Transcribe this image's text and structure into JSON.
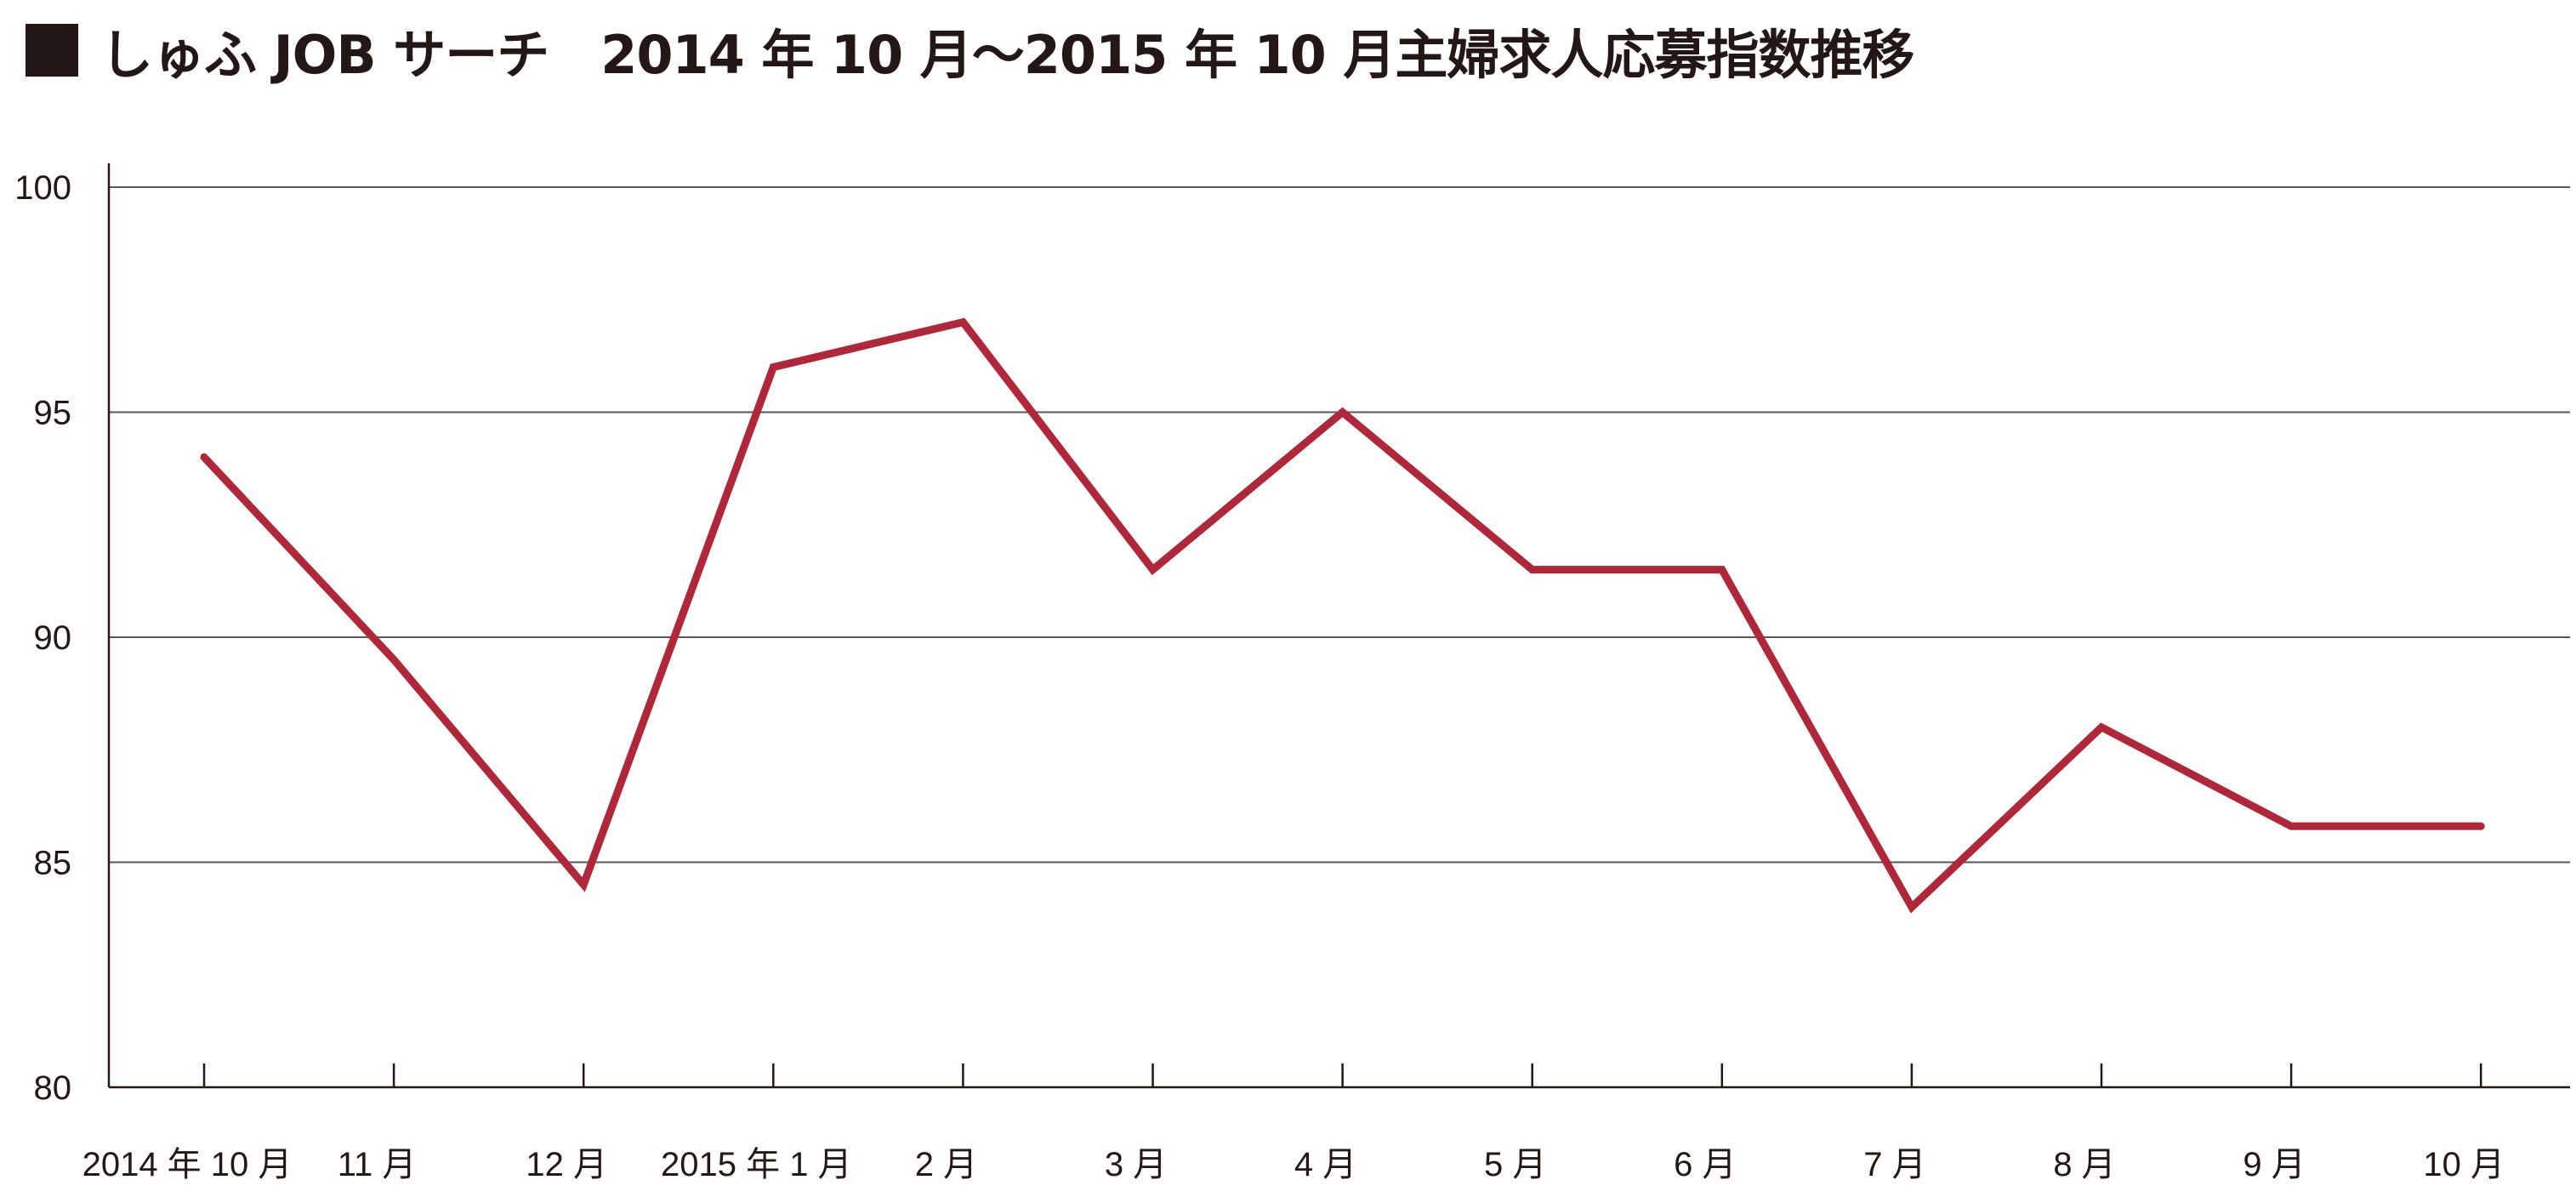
{
  "chart_data": {
    "type": "line",
    "title": "■ しゅふ JOB サーチ　2014 年 10 月〜2015 年 10 月主婦求人応募指数推移",
    "title_text": "しゅふ JOB サーチ　2014 年 10 月〜2015 年 10 月主婦求人応募指数推移",
    "categories": [
      "2014 年 10 月",
      "11 月",
      "12 月",
      "2015 年 1 月",
      "2 月",
      "3 月",
      "4 月",
      "5 月",
      "6 月",
      "7 月",
      "8 月",
      "9 月",
      "10 月"
    ],
    "series": [
      {
        "values": [
          94,
          89.5,
          84.5,
          96,
          97,
          91.5,
          95,
          91.5,
          91.5,
          84,
          88,
          85.8,
          85.8
        ],
        "color": "#b0273a"
      }
    ],
    "ylim": [
      80,
      100
    ],
    "yticks": [
      "80",
      "85",
      "90",
      "95",
      "100"
    ],
    "grid": true,
    "xlabel": "",
    "ylabel": ""
  }
}
